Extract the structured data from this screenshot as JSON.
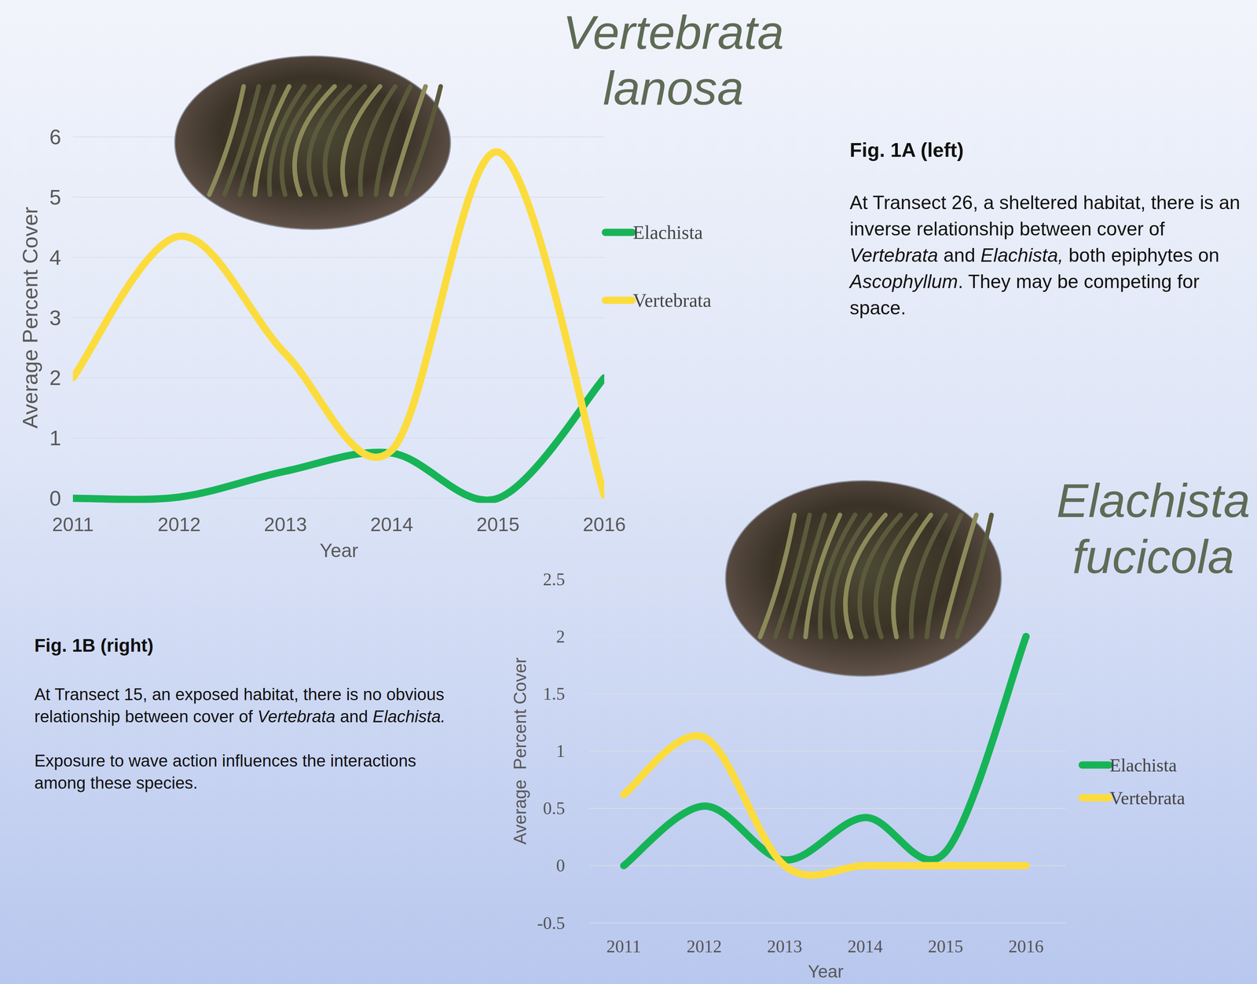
{
  "chart_data": [
    {
      "type": "line",
      "title": "Vertebrata lanosa",
      "x_label": "Year",
      "y_label": "Average Percent Cover",
      "categories": [
        "2011",
        "2012",
        "2013",
        "2014",
        "2015",
        "2016"
      ],
      "series": [
        {
          "name": "Elachista",
          "color": "#17b457",
          "values": [
            0,
            0.02,
            0.45,
            0.75,
            0,
            2.0
          ]
        },
        {
          "name": "Vertebrata",
          "color": "#fcdc3c",
          "values": [
            2.0,
            4.35,
            2.4,
            0.8,
            5.75,
            0.05
          ]
        }
      ],
      "ylim": [
        0,
        6
      ],
      "yticks": [
        0,
        1,
        2,
        3,
        4,
        5,
        6
      ],
      "grid": true,
      "legend": "right"
    },
    {
      "type": "line",
      "title": "Elachista fucicola",
      "x_label": "Year",
      "y_label": "Average  Percent Cover",
      "categories": [
        "2011",
        "2012",
        "2013",
        "2014",
        "2015",
        "2016"
      ],
      "series": [
        {
          "name": "Elachista",
          "color": "#17b457",
          "values": [
            0,
            0.52,
            0.05,
            0.42,
            0.12,
            2.0
          ]
        },
        {
          "name": "Vertebrata",
          "color": "#fcdc3c",
          "values": [
            0.62,
            1.12,
            0.0,
            0,
            0,
            0
          ]
        }
      ],
      "ylim": [
        -0.5,
        2.5
      ],
      "yticks": [
        -0.5,
        0,
        0.5,
        1,
        1.5,
        2,
        2.5
      ],
      "grid": true,
      "legend": "right"
    }
  ],
  "captions": [
    {
      "heading": "Fig. 1A (left)",
      "paragraphs": [
        [
          {
            "text": "At Transect 26, a sheltered habitat, there is an inverse relationship between cover of "
          },
          {
            "text": "Vertebrata",
            "italic": true
          },
          {
            "text": " and "
          },
          {
            "text": "Elachista,",
            "italic": true
          },
          {
            "text": " both epiphytes on "
          },
          {
            "text": "Ascophyllum",
            "italic": true
          },
          {
            "text": ". They may be competing for space."
          }
        ]
      ]
    },
    {
      "heading": "Fig. 1B (right)",
      "paragraphs": [
        [
          {
            "text": "At Transect 15, an exposed habitat, there is no obvious relationship between cover of "
          },
          {
            "text": "Vertebrata",
            "italic": true
          },
          {
            "text": " and "
          },
          {
            "text": "Elachista.",
            "italic": true
          }
        ],
        [
          {
            "text": "Exposure to wave action influences the interactions among these species."
          }
        ]
      ]
    }
  ]
}
